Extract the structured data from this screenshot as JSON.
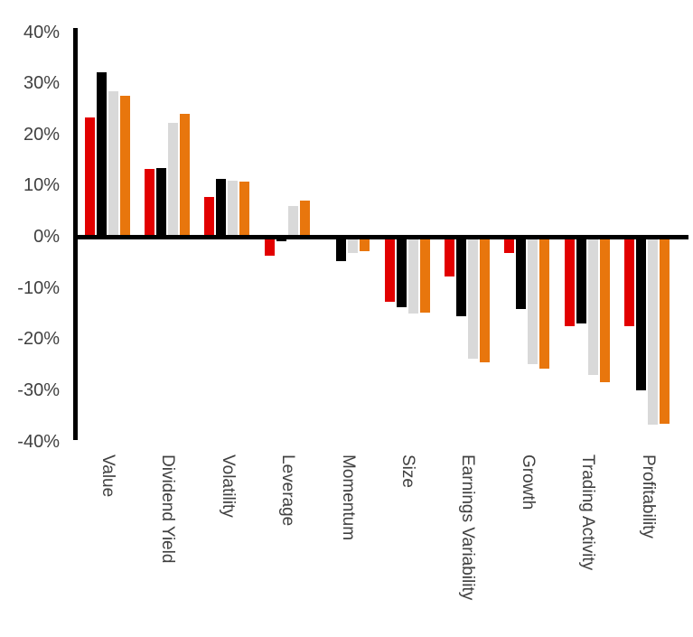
{
  "chart_data": {
    "type": "bar",
    "title": "",
    "legend_position": "none",
    "grid": "off",
    "background_color": "#ffffff",
    "axis_color": "#000000",
    "label_color": "#404040",
    "categories": [
      "Value",
      "Dividend Yield",
      "Volatility",
      "Leverage",
      "Momentum",
      "Size",
      "Earnings Variability",
      "Growth",
      "Trading Activity",
      "Profitability"
    ],
    "series": [
      {
        "name": "red",
        "color": "#e20000",
        "values": [
          23.3,
          13.3,
          7.8,
          -3.7,
          -0.5,
          -12.7,
          -7.7,
          -3.2,
          -17.5,
          -17.5
        ]
      },
      {
        "name": "black",
        "color": "#000000",
        "values": [
          32.2,
          13.4,
          11.3,
          -0.8,
          -4.7,
          -13.8,
          -15.6,
          -14.1,
          -16.9,
          -30.0
        ]
      },
      {
        "name": "gray",
        "color": "#d9d9d9",
        "values": [
          28.5,
          22.3,
          11.0,
          6.0,
          -3.2,
          -15.0,
          -23.8,
          -24.9,
          -27.0,
          -36.7
        ]
      },
      {
        "name": "orange",
        "color": "#e8760d",
        "values": [
          27.6,
          24.0,
          10.8,
          7.1,
          -2.8,
          -14.8,
          -24.5,
          -25.7,
          -28.4,
          -36.6
        ]
      }
    ],
    "y_axis": {
      "min": -40,
      "max": 40,
      "tick_step": 10,
      "ticks": [
        {
          "label": "40%",
          "value": 40
        },
        {
          "label": "30%",
          "value": 30
        },
        {
          "label": "20%",
          "value": 20
        },
        {
          "label": "10%",
          "value": 10
        },
        {
          "label": "0%",
          "value": 0
        },
        {
          "label": "-10%",
          "value": -10
        },
        {
          "label": "-20%",
          "value": -20
        },
        {
          "label": "-30%",
          "value": -30
        },
        {
          "label": "-40%",
          "value": -40
        }
      ]
    }
  }
}
